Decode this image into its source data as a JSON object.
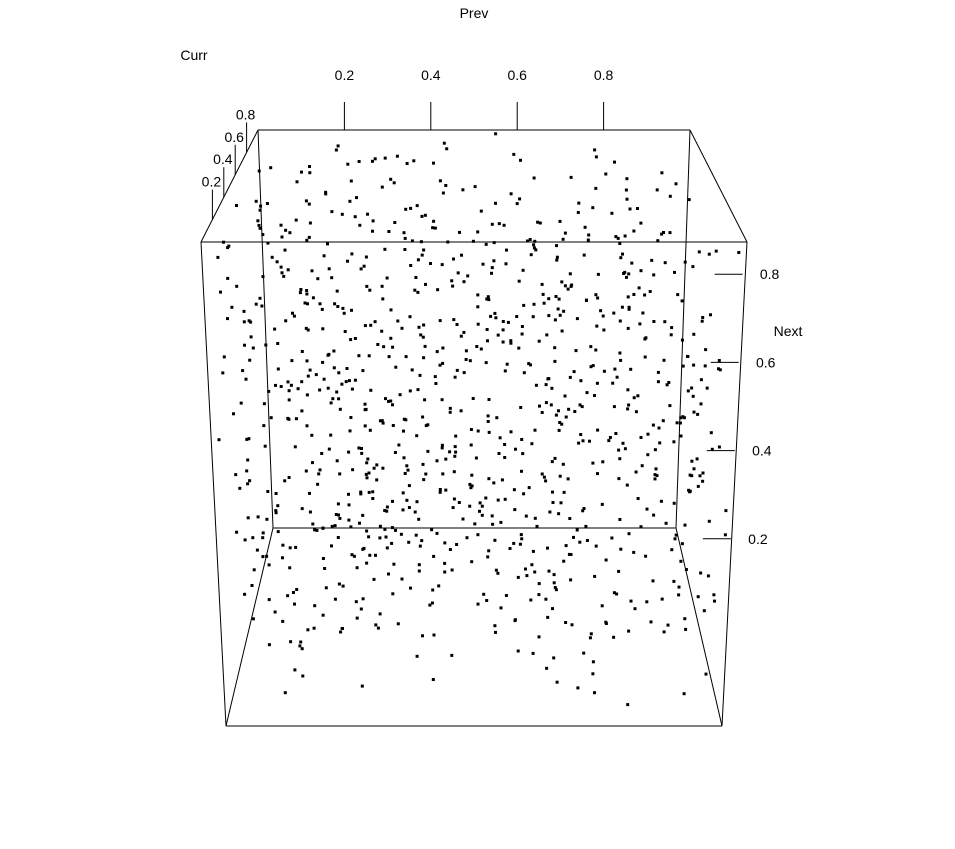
{
  "chart_data": {
    "type": "scatter",
    "title": "",
    "x_axis": {
      "label": "Prev",
      "range": [
        0,
        1
      ],
      "ticks": [
        0.2,
        0.4,
        0.6,
        0.8
      ],
      "tick_labels": [
        "0.2",
        "0.4",
        "0.6",
        "0.8"
      ]
    },
    "y_axis": {
      "label": "Curr",
      "range": [
        0,
        1
      ],
      "ticks": [
        0.2,
        0.4,
        0.6,
        0.8
      ],
      "tick_labels": [
        "0.2",
        "0.4",
        "0.6",
        "0.8"
      ]
    },
    "z_axis": {
      "label": "Next",
      "range": [
        0,
        1
      ],
      "ticks": [
        0.2,
        0.4,
        0.6,
        0.8
      ],
      "tick_labels": [
        "0.2",
        "0.4",
        "0.6",
        "0.8"
      ]
    },
    "grid": false,
    "legend": "none",
    "point_color": "#000000",
    "point_count": 1000,
    "points_description": "approximately uniform random triples (x, y, z) in the unit cube"
  }
}
